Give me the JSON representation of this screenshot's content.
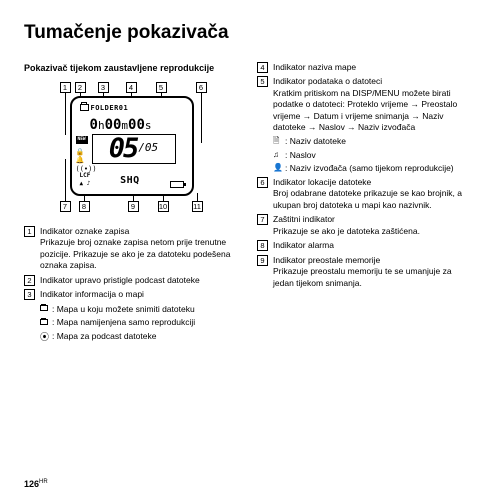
{
  "title": "Tumačenje pokazivača",
  "subtitle": "Pokazivač tijekom zaustavljene reprodukcije",
  "lcd": {
    "folder_label": "FOLDER01",
    "time": {
      "h": "0",
      "h_unit": "h",
      "m": "00",
      "m_unit": "m",
      "s": "00",
      "s_unit": "s"
    },
    "counter_current": "05",
    "counter_total": "/05",
    "new_badge": "NEW",
    "shq": "SHQ",
    "lcf": "LCF"
  },
  "callouts": {
    "1": "1",
    "2": "2",
    "3": "3",
    "4": "4",
    "5": "5",
    "6": "6",
    "7": "7",
    "8": "8",
    "9": "9",
    "10": "10",
    "11": "11"
  },
  "left_items": [
    {
      "num": "1",
      "title": "Indikator oznake zapisa",
      "desc": "Prikazuje broj oznake zapisa netom prije trenutne pozicije. Prikazuje se ako je za datoteku podešena oznaka zapisa."
    },
    {
      "num": "2",
      "title": "Indikator upravo pristigle podcast datoteke",
      "desc": ""
    },
    {
      "num": "3",
      "title": "Indikator informacija o mapi",
      "desc": "",
      "subs": [
        {
          "icon": "folder",
          "text": ": Mapa u koju možete snimiti datoteku"
        },
        {
          "icon": "folder",
          "text": ": Mapa namijenjena samo reprodukciji"
        },
        {
          "icon": "rss",
          "text": ": Mapa za podcast datoteke"
        }
      ]
    }
  ],
  "right_items": [
    {
      "num": "4",
      "title": "Indikator naziva mape",
      "desc": ""
    },
    {
      "num": "5",
      "title": "Indikator podataka o datoteci",
      "desc": "Kratkim pritiskom na DISP/MENU možete birati podatke o datoteci: Proteklo vrijeme → Preostalo vrijeme → Datum i vrijeme snimanja → Naziv datoteke → Naslov → Naziv izvođača",
      "subs": [
        {
          "icon": "file",
          "text": ": Naziv datoteke"
        },
        {
          "icon": "note",
          "text": ": Naslov"
        },
        {
          "icon": "person",
          "text": ": Naziv izvođača (samo tijekom reprodukcije)"
        }
      ]
    },
    {
      "num": "6",
      "title": "Indikator lokacije datoteke",
      "desc": "Broj odabrane datoteke prikazuje se kao brojnik, a ukupan broj datoteka u mapi kao nazivnik."
    },
    {
      "num": "7",
      "title": "Zaštitni indikator",
      "desc": "Prikazuje se ako je datoteka zaštićena."
    },
    {
      "num": "8",
      "title": "Indikator alarma",
      "desc": ""
    },
    {
      "num": "9",
      "title": "Indikator preostale memorije",
      "desc": "Prikazuje preostalu memoriju te se umanjuje za jedan tijekom snimanja."
    }
  ],
  "page_number": "126",
  "page_suffix": "HR"
}
